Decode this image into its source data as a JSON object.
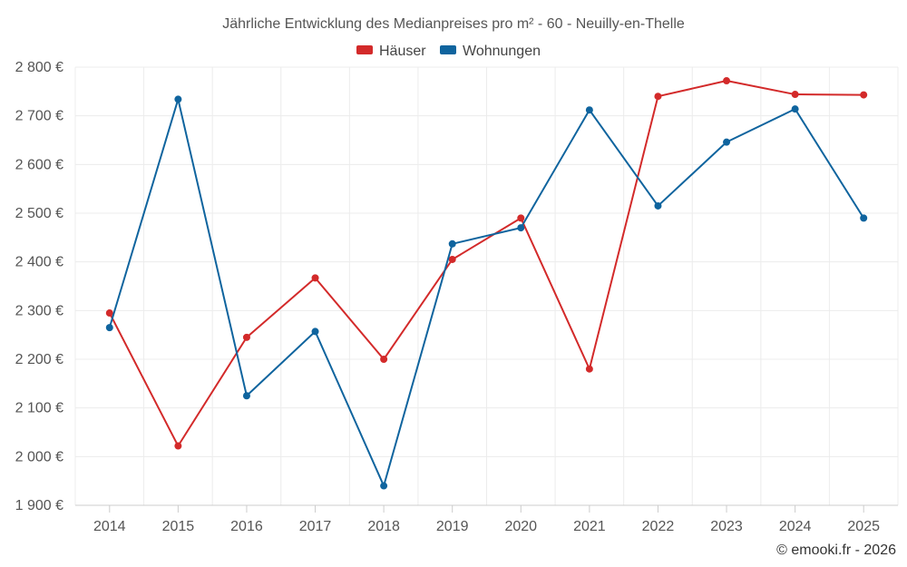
{
  "chart_data": {
    "type": "line",
    "title": "Jährliche Entwicklung des Medianpreises pro m² - 60 - Neuilly-en-Thelle",
    "categories": [
      "2014",
      "2015",
      "2016",
      "2017",
      "2018",
      "2019",
      "2020",
      "2021",
      "2022",
      "2023",
      "2024",
      "2025"
    ],
    "series": [
      {
        "name": "Häuser",
        "color": "#d32a2a",
        "values": [
          2295,
          2022,
          2245,
          2367,
          2200,
          2405,
          2490,
          2180,
          2740,
          2772,
          2744,
          2743
        ]
      },
      {
        "name": "Wohnungen",
        "color": "#0f649e",
        "values": [
          2265,
          2734,
          2125,
          2257,
          1940,
          2437,
          2470,
          2712,
          2515,
          2646,
          2714,
          2490
        ]
      }
    ],
    "ylim": [
      1900,
      2800
    ],
    "yticks": [
      1900,
      2000,
      2100,
      2200,
      2300,
      2400,
      2500,
      2600,
      2700,
      2800
    ],
    "ytick_labels": [
      "1 900 €",
      "2 000 €",
      "2 100 €",
      "2 200 €",
      "2 300 €",
      "2 400 €",
      "2 500 €",
      "2 600 €",
      "2 700 €",
      "2 800 €"
    ],
    "xlabel": "",
    "ylabel": "",
    "legend_position": "top-center",
    "grid": true
  },
  "credit": "© emooki.fr - 2026"
}
